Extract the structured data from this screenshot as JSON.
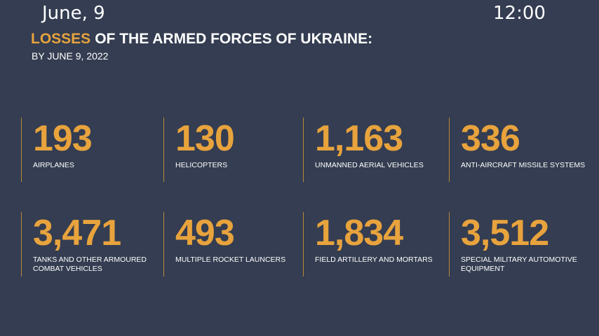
{
  "header": {
    "date": "June, 9",
    "time": "12:00"
  },
  "title": {
    "highlight": "LOSSES",
    "rest": "OF THE ARMED FORCES OF UKRAINE:"
  },
  "subtitle": "BY JUNE 9, 2022",
  "items": [
    {
      "value": "193",
      "label": "AIRPLANES"
    },
    {
      "value": "130",
      "label": "HELICOPTERS"
    },
    {
      "value": "1,163",
      "label": "UNMANNED AERIAL VEHICLES"
    },
    {
      "value": "336",
      "label": "ANTI-AIRCRAFT MISSILE SYSTEMS"
    },
    {
      "value": "3,471",
      "label": "TANKS AND OTHER ARMOURED COMBAT VEHICLES"
    },
    {
      "value": "493",
      "label": "MULTIPLE ROCKET LAUNCERS"
    },
    {
      "value": "1,834",
      "label": "FIELD ARTILLERY AND MORTARS"
    },
    {
      "value": "3,512",
      "label": "SPECIAL MILITARY AUTOMOTIVE EQUIPMENT"
    }
  ]
}
